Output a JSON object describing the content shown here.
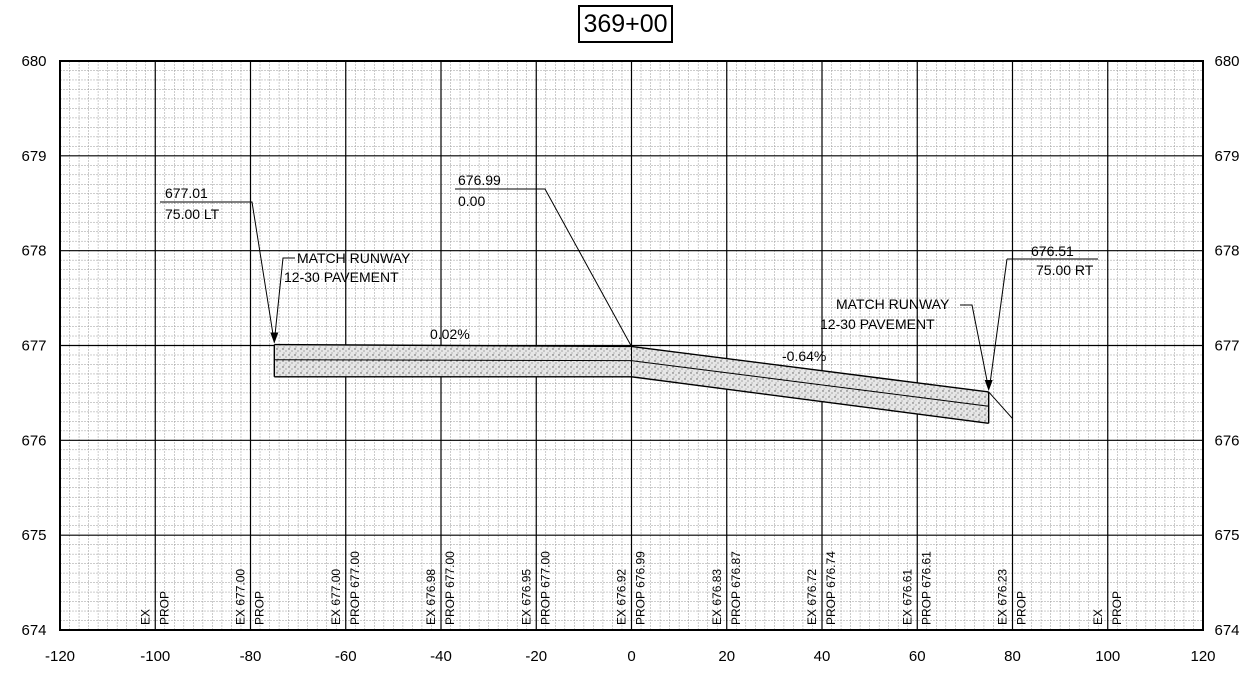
{
  "station": "369+00",
  "axes": {
    "x_ticks": [
      "-120",
      "-100",
      "-80",
      "-60",
      "-40",
      "-20",
      "0",
      "20",
      "40",
      "60",
      "80",
      "100",
      "120"
    ],
    "y_ticks": [
      "674",
      "675",
      "676",
      "677",
      "678",
      "679",
      "680"
    ]
  },
  "annotations": {
    "left_elev": "677.01",
    "left_offset": "75.00 LT",
    "center_elev": "676.99",
    "center_offset": "0.00",
    "right_elev": "676.51",
    "right_offset": "75.00 RT",
    "left_match_line1": "MATCH RUNWAY",
    "left_match_line2": "12-30 PAVEMENT",
    "right_match_line1": "MATCH RUNWAY",
    "right_match_line2": "12-30 PAVEMENT",
    "slope_left": "0.02%",
    "slope_right": "-0.64%"
  },
  "columns": [
    {
      "x": -100,
      "ex": "",
      "prop": ""
    },
    {
      "x": -80,
      "ex": "677.00",
      "prop": ""
    },
    {
      "x": -60,
      "ex": "677.00",
      "prop": "677.00"
    },
    {
      "x": -40,
      "ex": "676.98",
      "prop": "677.00"
    },
    {
      "x": -20,
      "ex": "676.95",
      "prop": "677.00"
    },
    {
      "x": 0,
      "ex": "676.92",
      "prop": "676.99"
    },
    {
      "x": 20,
      "ex": "676.83",
      "prop": "676.87"
    },
    {
      "x": 40,
      "ex": "676.72",
      "prop": "676.74"
    },
    {
      "x": 60,
      "ex": "676.61",
      "prop": "676.61"
    },
    {
      "x": 80,
      "ex": "676.23",
      "prop": ""
    },
    {
      "x": 100,
      "ex": "",
      "prop": ""
    }
  ],
  "column_labels": {
    "ex": "EX",
    "prop": "PROP"
  },
  "chart_data": {
    "type": "line",
    "title": "369+00",
    "xlim": [
      -120,
      120
    ],
    "ylim": [
      674,
      680
    ],
    "series": [
      {
        "name": "",
        "x": [
          -75,
          0,
          75
        ],
        "y": [
          677.01,
          676.99,
          676.51
        ]
      },
      {
        "name": "",
        "x": [
          -75,
          0,
          75
        ],
        "y": [
          676.85,
          676.84,
          676.36
        ]
      },
      {
        "name": "",
        "x": [
          -75,
          0,
          75
        ],
        "y": [
          676.67,
          676.67,
          676.18
        ]
      },
      {
        "name": "",
        "x": [
          75,
          80
        ],
        "y": [
          676.51,
          676.23
        ]
      }
    ]
  }
}
